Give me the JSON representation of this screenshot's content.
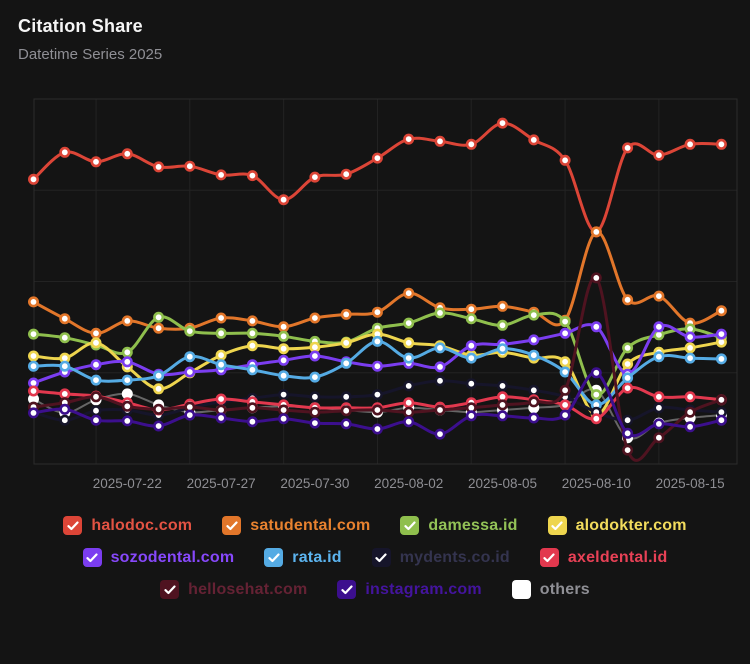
{
  "header": {
    "title": "Citation Share",
    "subtitle": "Datetime Series 2025"
  },
  "colors": {
    "background": "#141414",
    "plot_border": "#2c2c2c",
    "gridline": "#232323",
    "axis_label": "#8e8e93",
    "marker_fill": "#ffffff",
    "checkmark": "#ffffff"
  },
  "chart_data": {
    "type": "line",
    "title": "Citation Share",
    "subtitle": "Datetime Series 2025",
    "n_points": 23,
    "ylim": [
      0,
      50
    ],
    "grid": true,
    "legend_position": "bottom",
    "x_tick_labels": [
      "2025-07-22",
      "2025-07-27",
      "2025-07-30",
      "2025-08-02",
      "2025-08-05",
      "2025-08-10",
      "2025-08-15"
    ],
    "x_tick_point_indices": [
      3,
      6,
      9,
      12,
      15,
      18,
      21
    ],
    "x_gridline_point_indices": [
      2,
      5,
      8,
      11,
      14,
      17,
      20
    ],
    "y_gridline_values": [
      12.5,
      25,
      37.5
    ],
    "draw_order": [
      10,
      0,
      1,
      2,
      3,
      4,
      5,
      6,
      7,
      8,
      9
    ],
    "series": [
      {
        "name": "halodoc.com",
        "color": "#dc4537",
        "text_color": "#e35343",
        "line_opacity": 1,
        "values": [
          39.0,
          42.7,
          41.4,
          42.5,
          40.7,
          40.8,
          39.6,
          39.5,
          36.2,
          39.3,
          39.7,
          41.9,
          44.5,
          44.2,
          43.8,
          46.7,
          44.4,
          41.6,
          31.8,
          43.3,
          42.3,
          43.8,
          43.8
        ]
      },
      {
        "name": "satudental.com",
        "color": "#e2762a",
        "text_color": "#e8822f",
        "line_opacity": 1,
        "values": [
          22.2,
          19.9,
          17.9,
          19.6,
          18.6,
          18.6,
          20.0,
          19.6,
          18.8,
          20.0,
          20.5,
          20.8,
          23.4,
          21.4,
          21.2,
          21.6,
          20.8,
          19.7,
          31.8,
          22.5,
          23.0,
          19.3,
          21.0
        ]
      },
      {
        "name": "damessa.id",
        "color": "#8fbf4d",
        "text_color": "#93c257",
        "line_opacity": 1,
        "values": [
          17.8,
          17.3,
          16.3,
          15.3,
          20.1,
          18.2,
          17.9,
          17.9,
          17.5,
          16.8,
          16.7,
          18.6,
          19.3,
          20.7,
          19.9,
          19.0,
          20.4,
          19.5,
          9.5,
          15.9,
          17.7,
          18.5,
          17.3
        ]
      },
      {
        "name": "alodokter.com",
        "color": "#eed54e",
        "text_color": "#f2dc5d",
        "line_opacity": 1,
        "values": [
          14.8,
          14.5,
          16.6,
          13.3,
          10.3,
          12.5,
          14.9,
          16.2,
          15.8,
          16.0,
          16.6,
          17.8,
          16.6,
          16.2,
          14.9,
          15.3,
          14.5,
          14.0,
          6.7,
          13.7,
          15.3,
          15.9,
          16.7
        ]
      },
      {
        "name": "sozodental.com",
        "color": "#7b3df0",
        "text_color": "#8748fb",
        "line_opacity": 1,
        "values": [
          11.1,
          12.6,
          13.6,
          14.0,
          12.3,
          12.6,
          12.9,
          13.6,
          14.2,
          14.8,
          14.0,
          13.4,
          13.8,
          13.3,
          16.2,
          16.4,
          17.0,
          17.9,
          18.8,
          12.3,
          18.8,
          17.4,
          17.8
        ]
      },
      {
        "name": "rata.id",
        "color": "#55abe4",
        "text_color": "#5cb4ef",
        "line_opacity": 1,
        "values": [
          13.4,
          13.4,
          11.5,
          11.5,
          12.1,
          14.7,
          13.6,
          12.9,
          12.1,
          11.9,
          13.8,
          16.8,
          14.5,
          15.9,
          14.5,
          15.8,
          14.9,
          12.6,
          8.1,
          11.8,
          14.7,
          14.5,
          14.4
        ]
      },
      {
        "name": "mydents.co.id",
        "color": "#16152a",
        "text_color": "#34344f",
        "line_opacity": 1,
        "values": [
          7.1,
          6.0,
          7.3,
          7.4,
          6.7,
          7.7,
          8.5,
          9.0,
          9.5,
          9.2,
          9.2,
          9.5,
          10.7,
          11.4,
          11.0,
          10.7,
          10.1,
          9.2,
          7.1,
          6.0,
          7.7,
          7.4,
          7.1
        ]
      },
      {
        "name": "axeldental.id",
        "color": "#e2384e",
        "text_color": "#e84156",
        "line_opacity": 1,
        "values": [
          10.0,
          9.6,
          9.3,
          8.4,
          7.4,
          8.2,
          8.9,
          8.5,
          8.1,
          7.7,
          7.7,
          7.7,
          8.4,
          7.8,
          8.4,
          9.2,
          8.8,
          8.1,
          6.2,
          10.4,
          9.2,
          9.2,
          8.8
        ]
      },
      {
        "name": "hellosehat.com",
        "color": "#4f1320",
        "text_color": "#652234",
        "line_opacity": 1,
        "values": [
          7.8,
          8.4,
          9.2,
          7.9,
          7.5,
          7.8,
          7.4,
          7.7,
          7.4,
          7.1,
          7.3,
          7.4,
          7.1,
          7.4,
          7.7,
          8.1,
          8.5,
          10.1,
          25.5,
          1.9,
          3.6,
          7.1,
          8.8
        ]
      },
      {
        "name": "instagram.com",
        "color": "#3c0f8e",
        "text_color": "#44149e",
        "line_opacity": 1,
        "values": [
          7.0,
          7.5,
          6.0,
          5.9,
          5.2,
          6.7,
          6.3,
          5.8,
          6.2,
          5.6,
          5.5,
          4.8,
          5.8,
          4.1,
          6.6,
          6.6,
          6.3,
          6.7,
          12.5,
          4.2,
          5.5,
          5.1,
          6.0
        ]
      },
      {
        "name": "others",
        "color": "#ffffff",
        "text_color": "#8f8f95",
        "line_opacity": 0.35,
        "values": [
          8.9,
          7.0,
          8.8,
          9.6,
          8.1,
          7.1,
          7.4,
          7.7,
          7.9,
          7.7,
          7.4,
          7.1,
          7.7,
          7.4,
          7.1,
          7.4,
          7.7,
          8.1,
          10.1,
          3.6,
          5.6,
          6.3,
          6.7
        ]
      }
    ]
  },
  "legend": {
    "rows": [
      [
        0,
        1,
        2,
        3
      ],
      [
        4,
        5,
        6,
        7
      ],
      [
        8,
        9,
        10
      ]
    ],
    "items_checked": [
      true,
      true,
      true,
      true,
      true,
      true,
      true,
      true,
      true,
      true,
      true
    ]
  }
}
